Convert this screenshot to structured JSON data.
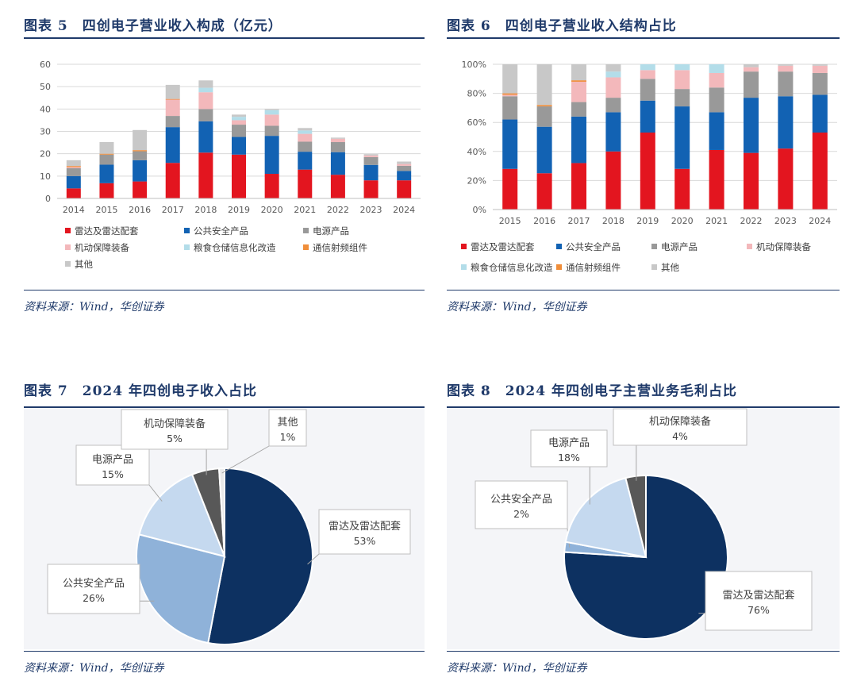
{
  "charts": {
    "c5": {
      "title": "图表 5　四创电子营业收入构成（亿元）",
      "source": "资料来源：Wind，华创证券"
    },
    "c6": {
      "title": "图表 6　四创电子营业收入结构占比",
      "source": "资料来源：Wind，华创证券"
    },
    "c7": {
      "title": "图表 7　2024 年四创电子收入占比",
      "source": "资料来源：Wind，华创证券"
    },
    "c8": {
      "title": "图表 8　2024 年四创电子主营业务毛利占比",
      "source": "资料来源：Wind，华创证券"
    }
  },
  "colors": {
    "radar": "#e3151f",
    "public": "#1262b3",
    "power": "#999999",
    "mobile": "#f3b8bb",
    "grain": "#b3dde9",
    "comm": "#f08e3a",
    "other": "#c8c8c8",
    "pie_radar": "#0d3161",
    "pie_public": "#8fb2d9",
    "pie_power": "#c5d9ef",
    "pie_mobile": "#585858",
    "pie_other": "#e8e8e8"
  },
  "chart_data": [
    {
      "type": "bar",
      "stacked": true,
      "categories": [
        "2014",
        "2015",
        "2016",
        "2017",
        "2018",
        "2019",
        "2020",
        "2021",
        "2022",
        "2023",
        "2024"
      ],
      "ylim": [
        0,
        60
      ],
      "yticks": [
        "0",
        "10",
        "20",
        "30",
        "40",
        "50",
        "60"
      ],
      "grid": true,
      "legend_position": "bottom",
      "series": [
        {
          "name": "雷达及雷达配套",
          "color_key": "radar",
          "values": [
            4.5,
            6.8,
            7.6,
            15.9,
            20.5,
            19.6,
            11.0,
            12.9,
            10.6,
            8.1,
            8.1
          ]
        },
        {
          "name": "公共安全产品",
          "color_key": "public",
          "values": [
            5.5,
            8.3,
            9.5,
            16.0,
            14.0,
            7.9,
            17.0,
            8.0,
            10.1,
            6.9,
            4.2
          ]
        },
        {
          "name": "电源产品",
          "color_key": "power",
          "values": [
            3.5,
            4.5,
            4.0,
            5.0,
            5.5,
            5.5,
            4.5,
            4.5,
            4.5,
            3.5,
            2.3
          ]
        },
        {
          "name": "机动保障装备",
          "color_key": "mobile",
          "values": [
            0.5,
            0,
            0,
            7.3,
            7.5,
            2.0,
            5.0,
            3.5,
            1.5,
            0.7,
            0.8
          ]
        },
        {
          "name": "粮食仓储信息化改造",
          "color_key": "grain",
          "values": [
            0,
            0,
            0,
            0,
            2.0,
            1.5,
            2.0,
            1.5,
            0,
            0,
            0
          ]
        },
        {
          "name": "通信射频组件",
          "color_key": "comm",
          "values": [
            0.5,
            0.4,
            0.5,
            0.3,
            0,
            0,
            0,
            0,
            0,
            0,
            0
          ]
        },
        {
          "name": "其他",
          "color_key": "other",
          "values": [
            2.6,
            5.2,
            9.0,
            6.3,
            3.3,
            1.0,
            0.5,
            1.1,
            0.5,
            0.6,
            1.1
          ]
        }
      ]
    },
    {
      "type": "bar",
      "stacked": true,
      "percent": true,
      "categories": [
        "2015",
        "2016",
        "2017",
        "2018",
        "2019",
        "2020",
        "2021",
        "2022",
        "2023",
        "2024"
      ],
      "ylim": [
        0,
        100
      ],
      "yticks": [
        "0%",
        "20%",
        "40%",
        "60%",
        "80%",
        "100%"
      ],
      "grid": true,
      "legend_position": "bottom",
      "series": [
        {
          "name": "雷达及雷达配套",
          "color_key": "radar",
          "values": [
            28,
            25,
            32,
            40,
            53,
            28,
            41,
            39,
            42,
            53
          ]
        },
        {
          "name": "公共安全产品",
          "color_key": "public",
          "values": [
            34,
            32,
            32,
            27,
            22,
            43,
            26,
            38,
            36,
            26
          ]
        },
        {
          "name": "电源产品",
          "color_key": "power",
          "values": [
            16,
            14,
            10,
            10,
            15,
            12,
            17,
            18,
            17,
            15
          ]
        },
        {
          "name": "机动保障装备",
          "color_key": "mobile",
          "values": [
            1,
            0,
            14,
            14,
            6,
            13,
            10,
            3,
            4,
            5
          ]
        },
        {
          "name": "粮食仓储信息化改造",
          "color_key": "grain",
          "values": [
            0,
            0,
            0,
            4,
            4,
            4,
            6,
            0,
            0,
            0
          ]
        },
        {
          "name": "通信射频组件",
          "color_key": "comm",
          "values": [
            1,
            1,
            1,
            0,
            0,
            0,
            0,
            0,
            0,
            0
          ]
        },
        {
          "name": "其他",
          "color_key": "other",
          "values": [
            20,
            28,
            11,
            5,
            0,
            0,
            0,
            2,
            1,
            1
          ]
        }
      ]
    },
    {
      "type": "pie",
      "slices": [
        {
          "name": "雷达及雷达配套",
          "label": "53%",
          "value": 53,
          "color_key": "pie_radar"
        },
        {
          "name": "公共安全产品",
          "label": "26%",
          "value": 26,
          "color_key": "pie_public"
        },
        {
          "name": "电源产品",
          "label": "15%",
          "value": 15,
          "color_key": "pie_power"
        },
        {
          "name": "机动保障装备",
          "label": "5%",
          "value": 5,
          "color_key": "pie_mobile"
        },
        {
          "name": "其他",
          "label": "1%",
          "value": 1,
          "color_key": "pie_other"
        }
      ]
    },
    {
      "type": "pie",
      "slices": [
        {
          "name": "雷达及雷达配套",
          "label": "76%",
          "value": 76,
          "color_key": "pie_radar"
        },
        {
          "name": "公共安全产品",
          "label": "2%",
          "value": 2,
          "color_key": "pie_public"
        },
        {
          "name": "电源产品",
          "label": "18%",
          "value": 18,
          "color_key": "pie_power"
        },
        {
          "name": "机动保障装备",
          "label": "4%",
          "value": 4,
          "color_key": "pie_mobile"
        }
      ]
    }
  ]
}
